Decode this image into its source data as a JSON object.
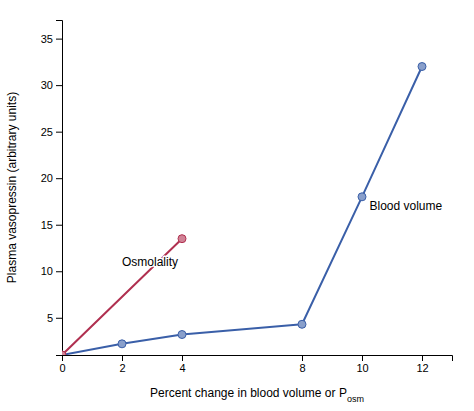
{
  "chart_data": {
    "type": "line",
    "xlabel": "Percent change in blood volume or P",
    "xlabel_subscript": "osm",
    "ylabel": "Plasma vasopressin (arbitrary units)",
    "series": [
      {
        "name": "Blood volume",
        "color": "#3a5fa8",
        "marker": "circle",
        "x": [
          0,
          2,
          4,
          8,
          10,
          12
        ],
        "values": [
          1,
          2.2,
          3.2,
          4.3,
          18,
          32
        ]
      },
      {
        "name": "Osmolality",
        "color": "#b03050",
        "marker": "circle",
        "x": [
          0,
          4
        ],
        "values": [
          1,
          13.5
        ]
      }
    ],
    "annotations": [
      {
        "text": "Osmolality",
        "x": 2.0,
        "y": 11.0
      },
      {
        "text": "Blood volume",
        "x": 10.25,
        "y": 17.0
      }
    ],
    "xlim": [
      0,
      13
    ],
    "ylim": [
      1,
      37
    ],
    "xticks": [
      0,
      2,
      4,
      8,
      10,
      12
    ],
    "yticks": [
      5,
      10,
      15,
      20,
      25,
      30,
      35
    ],
    "grid": false
  }
}
